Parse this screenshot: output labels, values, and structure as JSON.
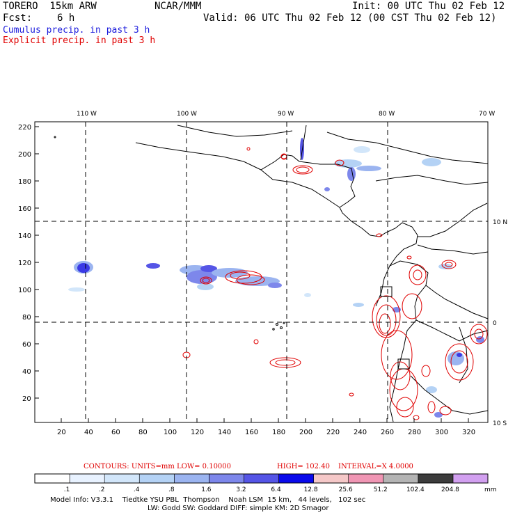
{
  "header": {
    "model": "TORERO  15km ARW",
    "org": "NCAR/MMM",
    "init": "Init: 00 UTC Thu 02 Feb 12",
    "fcst_label": "Fcst:",
    "fcst_value": "6 h",
    "valid": "Valid: 06 UTC Thu 02 Feb 12 (00 CST Thu 02 Feb 12)",
    "legend_cumulus": "Cumulus precip. in past 3 h",
    "legend_explicit": "Explicit precip. in past 3 h"
  },
  "map": {
    "top_lon_labels": [
      "110 W",
      "100 W",
      "90 W",
      "80 W",
      "70 W"
    ],
    "right_lat_labels": [
      "10 N",
      "0",
      "10 S"
    ],
    "y_ticks": [
      "220",
      "200",
      "180",
      "160",
      "140",
      "120",
      "100",
      "80",
      "60",
      "40",
      "20"
    ],
    "x_ticks": [
      "20",
      "40",
      "60",
      "80",
      "100",
      "120",
      "140",
      "160",
      "180",
      "200",
      "220",
      "240",
      "260",
      "280",
      "300",
      "320"
    ]
  },
  "contour_info": {
    "contours": "CONTOURS:  UNITS=mm  LOW= 0.10000",
    "high": "HIGH=  102.40",
    "interval": "INTERVAL=X  4.0000"
  },
  "colorbar": {
    "labels": [
      ".1",
      ".2",
      ".4",
      ".8",
      "1.6",
      "3.2",
      "6.4",
      "12.8",
      "25.6",
      "51.2",
      "102.4",
      "204.8"
    ],
    "unit": "mm",
    "colors": [
      "#ffffff",
      "#e8f2ff",
      "#d2e6fa",
      "#b4d2f5",
      "#9bb4f0",
      "#7d87eb",
      "#5555e6",
      "#0a0aeb",
      "#f5c8c8",
      "#f096b4",
      "#b4b4b4",
      "#3c3c3c",
      "#d2a0f0"
    ]
  },
  "footer": {
    "line1": "Model Info: V3.3.1    Tiedtke YSU PBL  Thompson    Noah LSM  15 km,   44 levels,   102 sec",
    "line2": "LW: Godd SW: Goddard DIFF: simple KM: 2D Smagor"
  }
}
